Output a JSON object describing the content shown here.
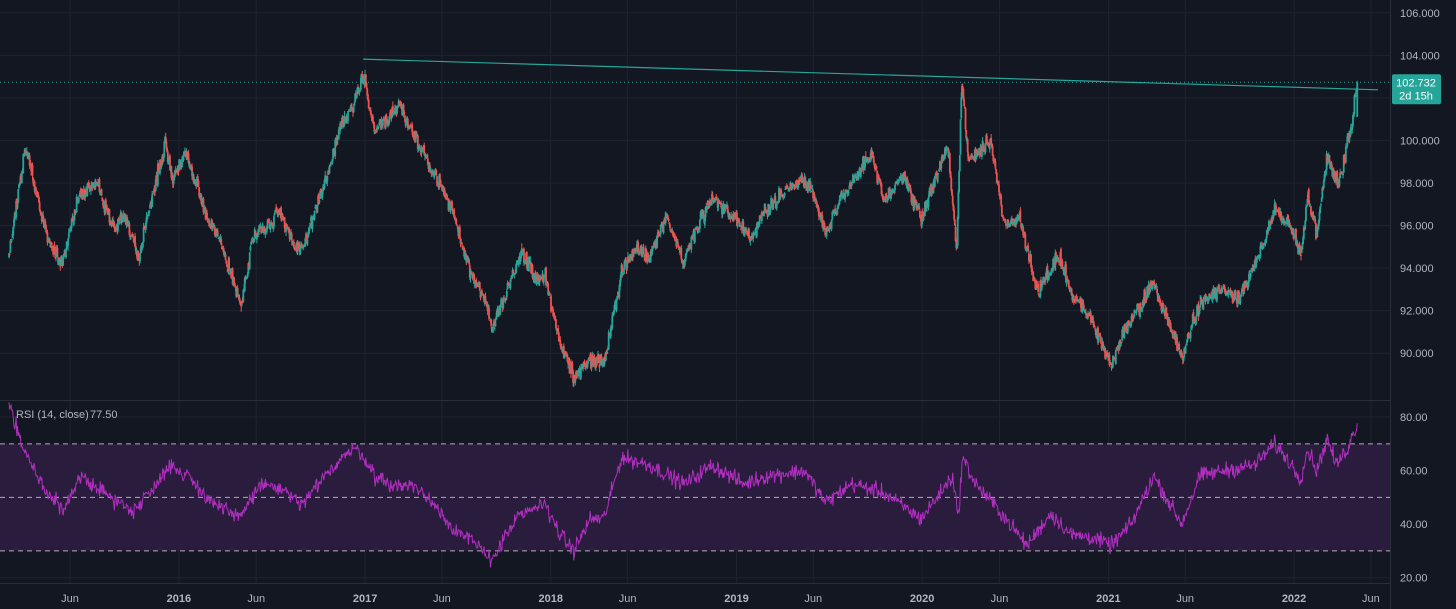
{
  "colors": {
    "background": "#131722",
    "grid": "#1f2331",
    "axis_text": "#b2b5be",
    "candle_up": "#26a69a",
    "candle_down": "#ef5350",
    "trendline": "#26a69a",
    "rsi_line": "#b02fbf",
    "rsi_band": "#2a1c3d",
    "rsi_level_line": "#e0e0e0"
  },
  "price_badge": {
    "value": "102.732",
    "countdown": "2d 15h"
  },
  "rsi_legend": {
    "name": "RSI (14, close)",
    "value": "77.50"
  },
  "chart_data": [
    {
      "type": "candlestick",
      "title": "",
      "timeframe": "daily",
      "x_range": [
        "2015-02-01",
        "2022-06-15"
      ],
      "ylim": [
        87.8,
        106.6
      ],
      "grid": true,
      "y_ticks": [
        "106.000",
        "104.000",
        "102.000",
        "100.000",
        "98.000",
        "96.000",
        "94.000",
        "92.000",
        "90.000"
      ],
      "x_ticks": [
        "Jun",
        "2016",
        "Jun",
        "2017",
        "Jun",
        "2018",
        "Jun",
        "2019",
        "Jun",
        "2020",
        "Jun",
        "2021",
        "Jun",
        "2022",
        "Jun"
      ],
      "last_close": 102.732,
      "path_anchors": [
        [
          "2015-02-01",
          94.5
        ],
        [
          "2015-03-05",
          99.8
        ],
        [
          "2015-04-15",
          95.5
        ],
        [
          "2015-05-15",
          94.2
        ],
        [
          "2015-06-20",
          97.5
        ],
        [
          "2015-07-25",
          98.0
        ],
        [
          "2015-08-25",
          95.8
        ],
        [
          "2015-09-15",
          96.5
        ],
        [
          "2015-10-15",
          94.5
        ],
        [
          "2015-11-10",
          97.5
        ],
        [
          "2015-12-05",
          99.8
        ],
        [
          "2015-12-20",
          98.2
        ],
        [
          "2016-01-15",
          99.5
        ],
        [
          "2016-02-25",
          96.5
        ],
        [
          "2016-03-25",
          95.0
        ],
        [
          "2016-05-03",
          92.2
        ],
        [
          "2016-05-25",
          95.5
        ],
        [
          "2016-06-25",
          96.0
        ],
        [
          "2016-07-15",
          96.8
        ],
        [
          "2016-08-20",
          94.8
        ],
        [
          "2016-09-10",
          95.5
        ],
        [
          "2016-10-20",
          98.5
        ],
        [
          "2016-11-15",
          100.8
        ],
        [
          "2016-12-08",
          101.5
        ],
        [
          "2016-12-28",
          103.2
        ],
        [
          "2017-01-18",
          100.5
        ],
        [
          "2017-02-15",
          101.0
        ],
        [
          "2017-03-10",
          101.8
        ],
        [
          "2017-04-05",
          100.2
        ],
        [
          "2017-05-15",
          98.5
        ],
        [
          "2017-06-25",
          96.5
        ],
        [
          "2017-07-25",
          94.0
        ],
        [
          "2017-08-25",
          92.5
        ],
        [
          "2017-09-08",
          91.2
        ],
        [
          "2017-10-10",
          93.2
        ],
        [
          "2017-11-05",
          94.8
        ],
        [
          "2017-12-05",
          93.3
        ],
        [
          "2017-12-20",
          93.8
        ],
        [
          "2018-01-15",
          90.8
        ],
        [
          "2018-02-15",
          88.8
        ],
        [
          "2018-03-20",
          89.8
        ],
        [
          "2018-04-15",
          89.5
        ],
        [
          "2018-05-20",
          93.8
        ],
        [
          "2018-06-20",
          95.0
        ],
        [
          "2018-07-15",
          94.5
        ],
        [
          "2018-08-15",
          96.5
        ],
        [
          "2018-09-20",
          94.2
        ],
        [
          "2018-10-15",
          96.0
        ],
        [
          "2018-11-15",
          97.2
        ],
        [
          "2018-12-25",
          96.5
        ],
        [
          "2019-01-30",
          95.4
        ],
        [
          "2019-03-01",
          96.8
        ],
        [
          "2019-04-25",
          98.0
        ],
        [
          "2019-05-25",
          98.0
        ],
        [
          "2019-06-25",
          95.8
        ],
        [
          "2019-08-15",
          98.0
        ],
        [
          "2019-09-25",
          99.3
        ],
        [
          "2019-10-15",
          97.2
        ],
        [
          "2019-11-25",
          98.3
        ],
        [
          "2019-12-30",
          96.4
        ],
        [
          "2020-02-20",
          99.8
        ],
        [
          "2020-03-09",
          94.8
        ],
        [
          "2020-03-19",
          102.9
        ],
        [
          "2020-04-01",
          99.0
        ],
        [
          "2020-05-15",
          100.0
        ],
        [
          "2020-06-10",
          96.0
        ],
        [
          "2020-07-10",
          96.5
        ],
        [
          "2020-08-15",
          92.8
        ],
        [
          "2020-09-25",
          94.6
        ],
        [
          "2020-10-20",
          92.8
        ],
        [
          "2020-11-25",
          91.8
        ],
        [
          "2021-01-06",
          89.4
        ],
        [
          "2021-02-01",
          91.0
        ],
        [
          "2021-03-31",
          93.3
        ],
        [
          "2021-05-25",
          89.8
        ],
        [
          "2021-06-30",
          92.4
        ],
        [
          "2021-08-15",
          93.0
        ],
        [
          "2021-09-15",
          92.6
        ],
        [
          "2021-10-15",
          94.0
        ],
        [
          "2021-11-24",
          96.8
        ],
        [
          "2021-12-25",
          96.0
        ],
        [
          "2022-01-14",
          94.6
        ],
        [
          "2022-01-28",
          97.3
        ],
        [
          "2022-02-15",
          95.7
        ],
        [
          "2022-03-07",
          99.2
        ],
        [
          "2022-03-30",
          97.8
        ],
        [
          "2022-04-25",
          101.0
        ],
        [
          "2022-05-06",
          102.73
        ]
      ],
      "trendline": {
        "points": [
          [
            "2016-12-28",
            103.82
          ],
          [
            "2022-06-15",
            102.38
          ]
        ]
      },
      "last_price_line": 102.732
    },
    {
      "type": "line",
      "title": "RSI (14, close)",
      "ylim": [
        18,
        86
      ],
      "y_ticks": [
        "80.00",
        "60.00",
        "40.00",
        "20.00"
      ],
      "levels": [
        70,
        50,
        30
      ],
      "band": [
        30,
        70
      ],
      "last_value": 77.5,
      "anchors": [
        [
          "2015-02-01",
          86.0
        ],
        [
          "2015-03-01",
          68.0
        ],
        [
          "2015-04-15",
          52.0
        ],
        [
          "2015-05-20",
          45.0
        ],
        [
          "2015-06-25",
          58.0
        ],
        [
          "2015-08-20",
          50.0
        ],
        [
          "2015-10-01",
          45.0
        ],
        [
          "2015-11-10",
          53.0
        ],
        [
          "2015-12-10",
          62.0
        ],
        [
          "2016-01-20",
          58.0
        ],
        [
          "2016-03-01",
          49.0
        ],
        [
          "2016-04-25",
          42.0
        ],
        [
          "2016-06-10",
          55.0
        ],
        [
          "2016-07-20",
          53.0
        ],
        [
          "2016-08-30",
          47.0
        ],
        [
          "2016-10-15",
          58.0
        ],
        [
          "2016-11-20",
          66.0
        ],
        [
          "2016-12-20",
          68.0
        ],
        [
          "2017-01-20",
          58.0
        ],
        [
          "2017-02-28",
          54.0
        ],
        [
          "2017-04-01",
          55.0
        ],
        [
          "2017-05-15",
          48.0
        ],
        [
          "2017-06-25",
          38.0
        ],
        [
          "2017-07-20",
          35.0
        ],
        [
          "2017-09-08",
          27.0
        ],
        [
          "2017-10-25",
          42.0
        ],
        [
          "2017-12-20",
          48.0
        ],
        [
          "2018-01-20",
          36.0
        ],
        [
          "2018-02-15",
          30.0
        ],
        [
          "2018-03-20",
          42.0
        ],
        [
          "2018-04-15",
          42.0
        ],
        [
          "2018-05-20",
          65.0
        ],
        [
          "2018-07-15",
          62.0
        ],
        [
          "2018-09-20",
          55.0
        ],
        [
          "2018-11-15",
          62.0
        ],
        [
          "2019-01-15",
          55.0
        ],
        [
          "2019-03-01",
          58.0
        ],
        [
          "2019-05-15",
          60.0
        ],
        [
          "2019-06-25",
          48.0
        ],
        [
          "2019-08-15",
          55.0
        ],
        [
          "2019-10-15",
          52.0
        ],
        [
          "2019-12-30",
          42.0
        ],
        [
          "2020-03-01",
          58.0
        ],
        [
          "2020-03-12",
          42.0
        ],
        [
          "2020-03-20",
          65.0
        ],
        [
          "2020-04-15",
          55.0
        ],
        [
          "2020-06-01",
          45.0
        ],
        [
          "2020-07-25",
          32.0
        ],
        [
          "2020-09-10",
          44.0
        ],
        [
          "2020-10-20",
          36.0
        ],
        [
          "2020-12-01",
          35.0
        ],
        [
          "2021-01-06",
          32.0
        ],
        [
          "2021-02-15",
          40.0
        ],
        [
          "2021-03-31",
          58.0
        ],
        [
          "2021-05-25",
          40.0
        ],
        [
          "2021-06-30",
          58.0
        ],
        [
          "2021-08-15",
          60.0
        ],
        [
          "2021-10-15",
          62.0
        ],
        [
          "2021-11-24",
          70.0
        ],
        [
          "2021-12-20",
          64.0
        ],
        [
          "2022-01-14",
          57.0
        ],
        [
          "2022-01-28",
          68.0
        ],
        [
          "2022-02-15",
          60.0
        ],
        [
          "2022-03-07",
          72.0
        ],
        [
          "2022-03-25",
          62.0
        ],
        [
          "2022-04-15",
          68.0
        ],
        [
          "2022-05-06",
          77.5
        ]
      ]
    }
  ]
}
